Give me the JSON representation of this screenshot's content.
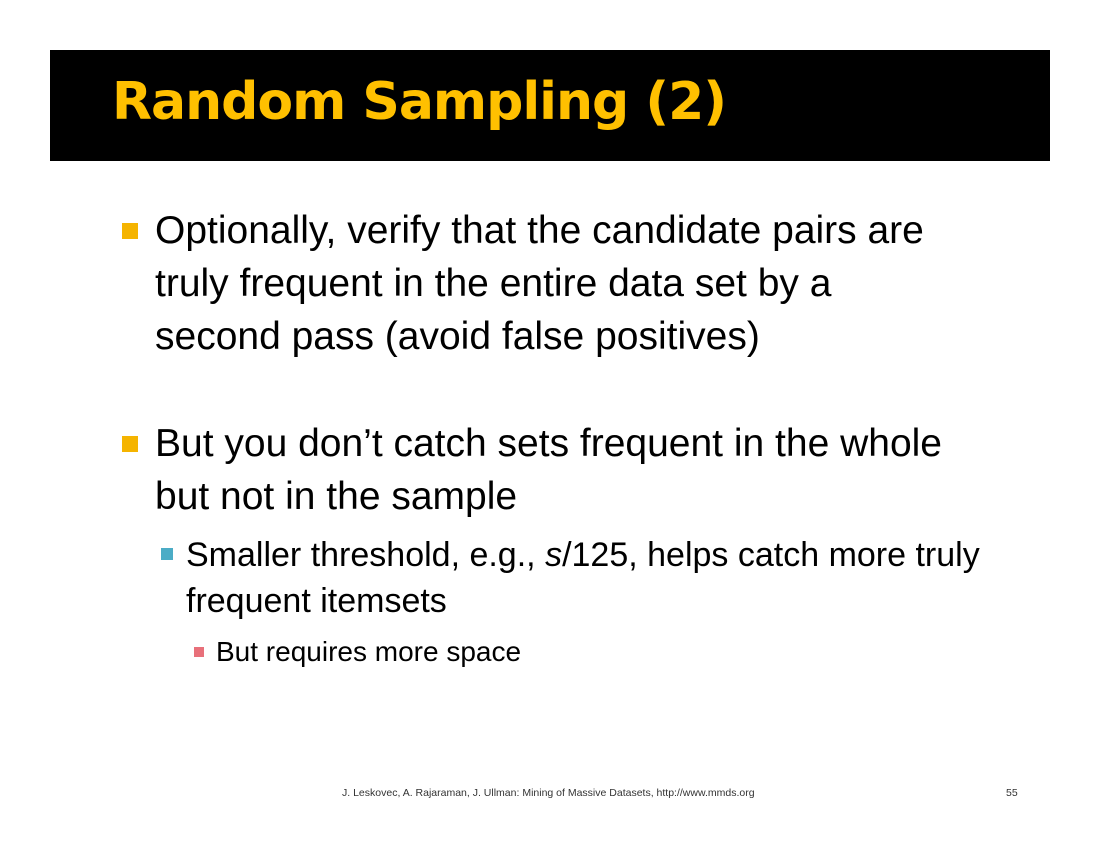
{
  "slide": {
    "title": "Random Sampling (2)",
    "bullets": [
      {
        "text": "Optionally, verify that the candidate pairs are\ntruly frequent in the entire data set by a\nsecond pass (avoid false positives)"
      },
      {
        "text": "But you don’t catch sets frequent in the whole\nbut not in the sample"
      }
    ],
    "sub_bullet": {
      "prefix": "Smaller threshold, e.g., ",
      "italic": "s",
      "suffix": "/125, helps catch more truly frequent itemsets"
    },
    "subsub_bullet": {
      "text": "But requires more space"
    },
    "footer": {
      "citation": "J. Leskovec, A. Rajaraman, J. Ullman: Mining of Massive Datasets, http://www.mmds.org",
      "page_number": "55"
    }
  },
  "colors": {
    "title_bar": "#000000",
    "title_text": "#ffc000",
    "bullet_level1": "#f5b400",
    "bullet_level2": "#4bacc6",
    "bullet_level3": "#e8707a"
  }
}
